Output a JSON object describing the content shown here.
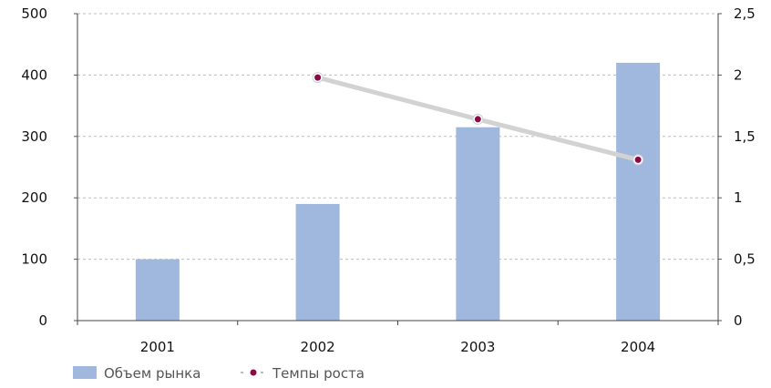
{
  "chart_data": {
    "type": "bar",
    "categories": [
      "2001",
      "2002",
      "2003",
      "2004"
    ],
    "series": [
      {
        "name": "Объем рынка",
        "kind": "bar",
        "axis": "left",
        "values": [
          100,
          190,
          315,
          420
        ],
        "color": "#a0b8de"
      },
      {
        "name": "Темпы роста",
        "kind": "line",
        "axis": "right",
        "values": [
          null,
          1.98,
          1.64,
          1.31
        ],
        "color": "#8c0a47",
        "line_color": "#d2d2d2"
      }
    ],
    "y_left": {
      "ylim": [
        0,
        500
      ],
      "ticks": [
        "0",
        "100",
        "200",
        "300",
        "400",
        "500"
      ]
    },
    "y_right": {
      "ylim": [
        0,
        2.5
      ],
      "ticks": [
        "0",
        "0,5",
        "1",
        "1,5",
        "2",
        "2,5"
      ]
    },
    "grid": true,
    "legend": "bottom-left"
  }
}
